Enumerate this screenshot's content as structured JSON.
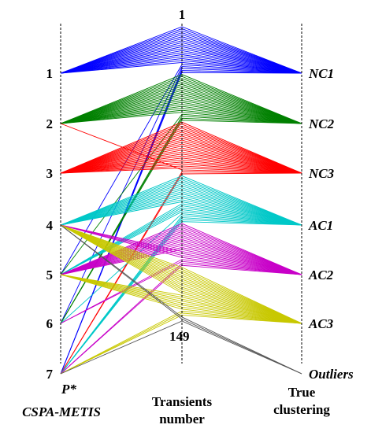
{
  "chart_data": {
    "type": "parallel-coordinates",
    "axes": [
      {
        "name": "P* CSPA-METIS",
        "label_lines": [
          "P*",
          "CSPA-METIS"
        ],
        "ticks": [
          "1",
          "2",
          "3",
          "4",
          "5",
          "6",
          "7"
        ]
      },
      {
        "name": "Transients number",
        "label_lines": [
          "Transients",
          "number"
        ],
        "ticks": [
          "1",
          "149"
        ],
        "range": [
          1,
          149
        ]
      },
      {
        "name": "True clustering",
        "label_lines": [
          "True",
          "clustering"
        ],
        "ticks": [
          "NC1",
          "NC2",
          "NC3",
          "AC1",
          "AC2",
          "AC3",
          "Outliers"
        ]
      }
    ],
    "series": [
      {
        "name": "NC1",
        "color": "#0000ff",
        "transient_range": [
          1,
          24
        ],
        "cspa_assignment": [
          [
            1,
            19
          ],
          [
            5,
            1
          ],
          [
            6,
            1
          ],
          [
            7,
            3
          ]
        ]
      },
      {
        "name": "NC2",
        "color": "#008000",
        "transient_range": [
          25,
          48
        ],
        "cspa_assignment": [
          [
            2,
            20
          ],
          [
            5,
            1
          ],
          [
            6,
            3
          ]
        ]
      },
      {
        "name": "NC3",
        "color": "#ff0000",
        "transient_range": [
          49,
          75
        ],
        "cspa_assignment": [
          [
            3,
            24
          ],
          [
            2,
            1
          ],
          [
            7,
            2
          ]
        ]
      },
      {
        "name": "AC1",
        "color": "#00c8c8",
        "transient_range": [
          76,
          99
        ],
        "cspa_assignment": [
          [
            4,
            14
          ],
          [
            5,
            5
          ],
          [
            6,
            1
          ],
          [
            7,
            4
          ]
        ]
      },
      {
        "name": "AC2",
        "color": "#c800c8",
        "transient_range": [
          100,
          121
        ],
        "cspa_assignment": [
          [
            5,
            14
          ],
          [
            4,
            4
          ],
          [
            6,
            2
          ],
          [
            7,
            2
          ]
        ]
      },
      {
        "name": "AC3",
        "color": "#c8c800",
        "transient_range": [
          122,
          146
        ],
        "cspa_assignment": [
          [
            4,
            14
          ],
          [
            5,
            8
          ],
          [
            7,
            3
          ]
        ]
      },
      {
        "name": "Outliers",
        "color": "#555555",
        "transient_range": [
          147,
          149
        ],
        "cspa_assignment": [
          [
            4,
            2
          ],
          [
            7,
            1
          ]
        ]
      }
    ]
  }
}
